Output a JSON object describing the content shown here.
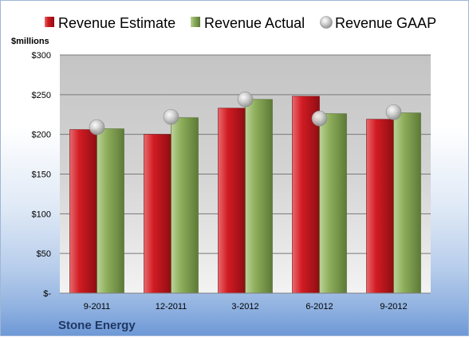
{
  "chart_data": {
    "type": "bar",
    "unit_label": "$millions",
    "footer": "Stone Energy",
    "categories": [
      "9-2011",
      "12-2011",
      "3-2012",
      "6-2012",
      "9-2012"
    ],
    "y_ticks": [
      "$-",
      "$50",
      "$100",
      "$150",
      "$200",
      "$250",
      "$300"
    ],
    "ylim": [
      0,
      300
    ],
    "series": [
      {
        "name": "Revenue Estimate",
        "kind": "bar",
        "color": "#c8161d",
        "values": [
          206,
          200,
          233,
          248,
          219
        ]
      },
      {
        "name": "Revenue Actual",
        "kind": "bar",
        "color": "#8aab5a",
        "values": [
          207,
          221,
          244,
          226,
          227
        ]
      },
      {
        "name": "Revenue GAAP",
        "kind": "marker",
        "color": "#b7b7b7",
        "values": [
          209,
          222,
          244,
          220,
          228
        ]
      }
    ],
    "legend_position": "top",
    "grid": true
  }
}
